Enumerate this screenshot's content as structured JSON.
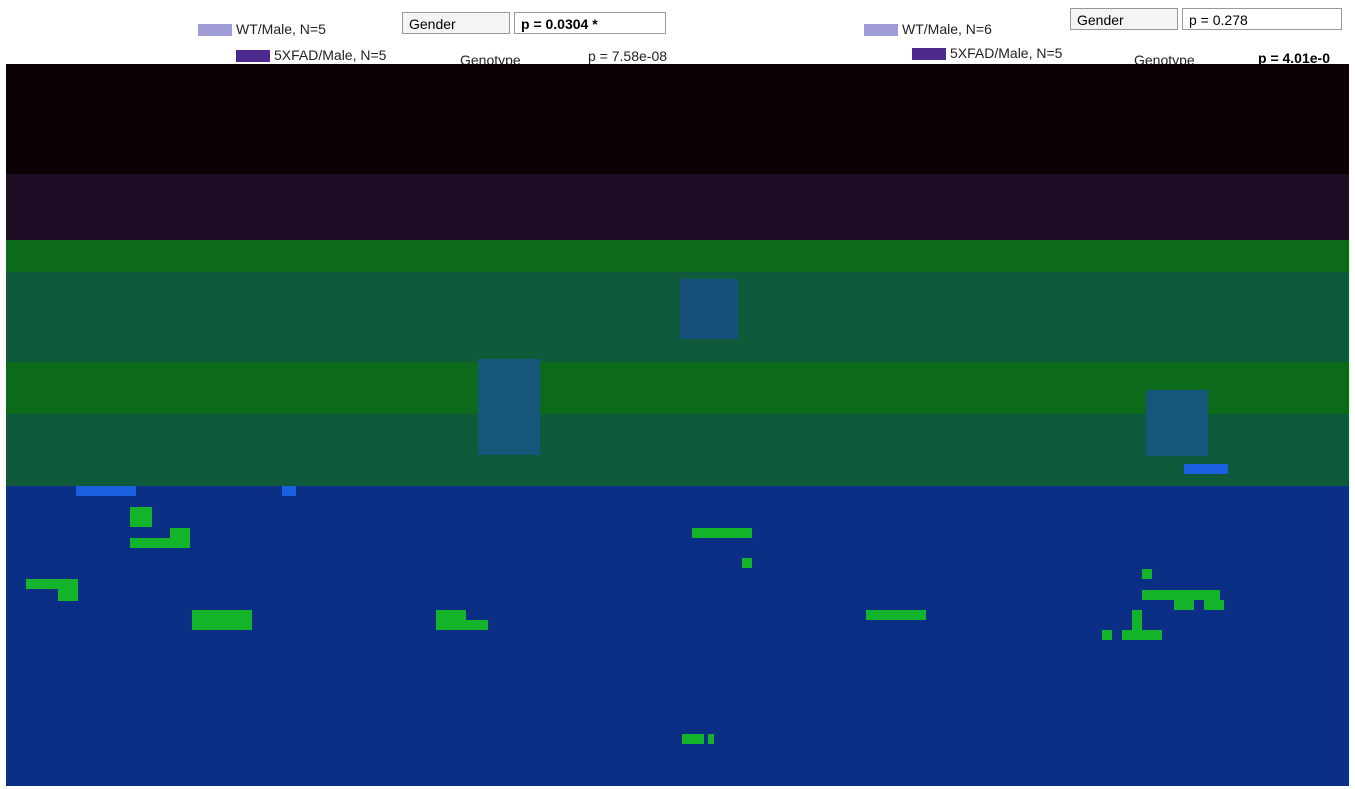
{
  "panels": [
    {
      "legend": [
        {
          "label": "WT/Male, N=5",
          "color": "#9e9bd6"
        },
        {
          "label": "5XFAD/Male, N=5",
          "color": "#4b2a8c"
        }
      ],
      "stats": [
        {
          "factor": "Gender",
          "p": "p = 0.0304 *"
        },
        {
          "factor": "Genotype",
          "p": "p = 7.58e-08"
        }
      ]
    },
    {
      "legend": [
        {
          "label": "WT/Male, N=6",
          "color": "#9e9bd6"
        },
        {
          "label": "5XFAD/Male, N=5",
          "color": "#4b2a8c"
        }
      ],
      "stats": [
        {
          "factor": "Gender",
          "p": "p = 0.278"
        },
        {
          "factor": "Genotype",
          "p": "p = 4.01e-0"
        }
      ]
    }
  ],
  "chart_data": {
    "type": "heatmap",
    "title": "",
    "colors": {
      "top_band": "#7a4fb0",
      "black": "#0b0205",
      "purple_dark": "#1e0d24",
      "green": "#0b6b1a",
      "teal": "#0e5a3a",
      "blue": "#0a3a8a",
      "navy": "#0a2f84",
      "bright_green": "#14b52a",
      "bright_blue": "#1a5fe0"
    }
  }
}
